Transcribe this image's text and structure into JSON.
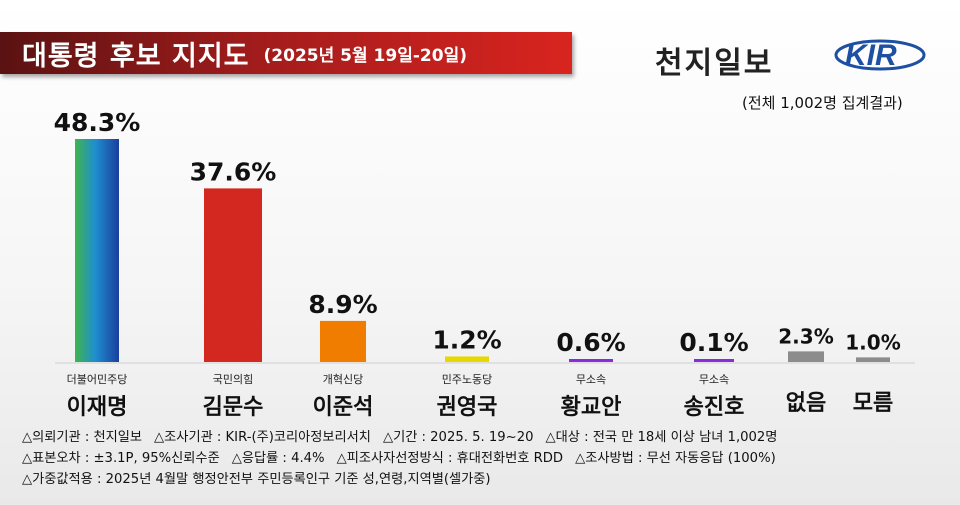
{
  "header": {
    "title": "대통령 후보 지지도",
    "period": "(2025년 5월 19일-20일)",
    "brand": "천지일보",
    "logo_text": "KIR",
    "total": "(전체 1,002명 집계결과)"
  },
  "chart_data": {
    "type": "bar",
    "title": "대통령 후보 지지도",
    "subtitle": "(2025년 5월 19일-20일)",
    "unit": "%",
    "categories": [
      "이재명",
      "김문수",
      "이준석",
      "권영국",
      "황교안",
      "송진호",
      "없음",
      "모름"
    ],
    "parties": [
      "더불어민주당",
      "국민의힘",
      "개혁신당",
      "민주노동당",
      "무소속",
      "무소속",
      "",
      ""
    ],
    "values": [
      48.3,
      37.6,
      8.9,
      1.2,
      0.6,
      0.1,
      2.3,
      1.0
    ],
    "labels": [
      "48.3%",
      "37.6%",
      "8.9%",
      "1.2%",
      "0.6%",
      "0.1%",
      "2.3%",
      "1.0%"
    ],
    "colors": [
      "gradient-blue-green",
      "#d3281f",
      "#f07d00",
      "#e6d800",
      "#8a2be2",
      "#8a2be2",
      "#8c8c8c",
      "#8c8c8c"
    ],
    "ylim": [
      0,
      48.3
    ],
    "grid": false,
    "legend": "none"
  },
  "footnotes": {
    "line1": [
      "△의뢰기관 : 천지일보",
      "△조사기관 : KIR-(주)코리아정보리서치",
      "△기간 : 2025. 5. 19~20",
      "△대상 : 전국 만 18세 이상 남녀 1,002명"
    ],
    "line2": [
      "△표본오차 : ±3.1P, 95%신뢰수준",
      "△응답률 : 4.4%",
      "△피조사자선정방식 : 휴대전화번호 RDD",
      "△조사방법 : 무선 자동응답 (100%)"
    ],
    "line3": [
      "△가중값적용 : 2025년 4월말 행정안전부 주민등록인구 기준 성,연령,지역별(셀가중)"
    ]
  }
}
